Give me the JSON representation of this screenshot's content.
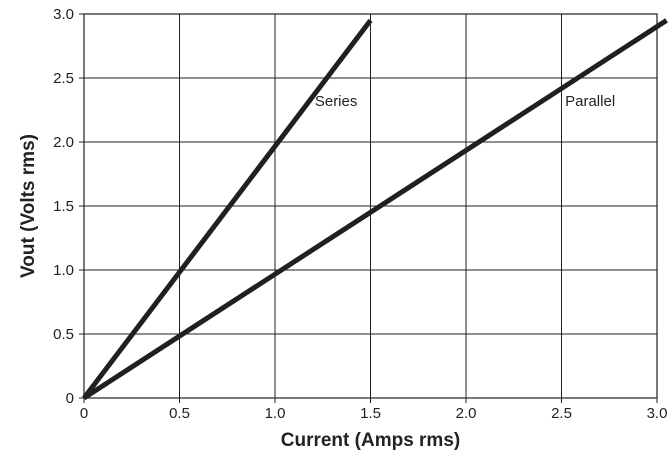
{
  "chart_data": {
    "type": "line",
    "xlabel": "Current (Amps rms)",
    "ylabel": "Vout (Volts rms)",
    "xlim": [
      0,
      3.0
    ],
    "ylim": [
      0,
      3.0
    ],
    "grid": true,
    "x_ticks": [
      {
        "value": 0,
        "label": "0"
      },
      {
        "value": 0.5,
        "label": "0.5"
      },
      {
        "value": 1.0,
        "label": "1.0"
      },
      {
        "value": 1.5,
        "label": "1.5"
      },
      {
        "value": 2.0,
        "label": "2.0"
      },
      {
        "value": 2.5,
        "label": "2.5"
      },
      {
        "value": 3.0,
        "label": "3.0"
      }
    ],
    "y_ticks": [
      {
        "value": 0,
        "label": "0"
      },
      {
        "value": 0.5,
        "label": "0.5"
      },
      {
        "value": 1.0,
        "label": "1.0"
      },
      {
        "value": 1.5,
        "label": "1.5"
      },
      {
        "value": 2.0,
        "label": "2.0"
      },
      {
        "value": 2.5,
        "label": "2.5"
      },
      {
        "value": 3.0,
        "label": "3.0"
      }
    ],
    "series": [
      {
        "name": "Series",
        "color": "#231f20",
        "points": [
          [
            0,
            0
          ],
          [
            1.5,
            2.95
          ]
        ],
        "label_at": [
          1.32,
          2.28
        ]
      },
      {
        "name": "Parallel",
        "color": "#231f20",
        "points": [
          [
            0,
            0
          ],
          [
            3.05,
            2.95
          ]
        ],
        "label_at": [
          2.65,
          2.28
        ]
      }
    ]
  }
}
